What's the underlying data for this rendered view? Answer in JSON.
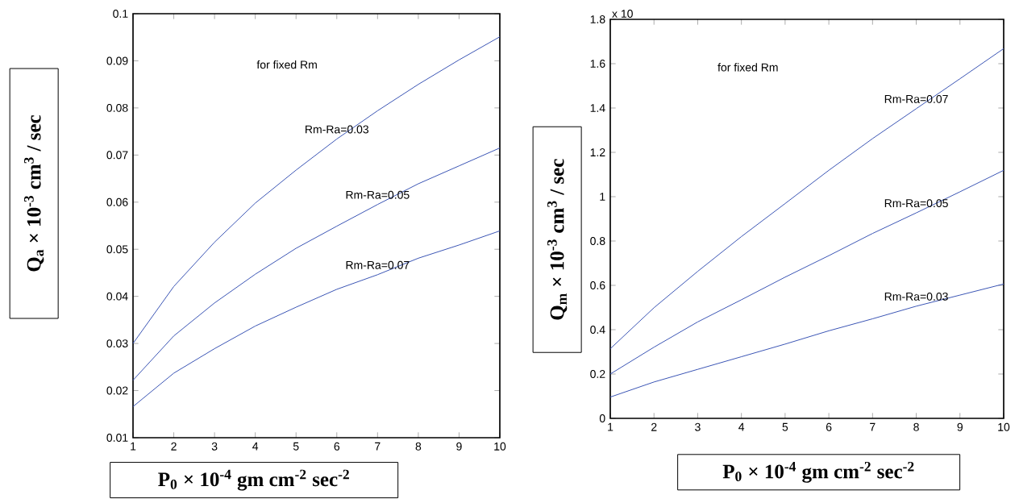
{
  "chart_data": [
    {
      "type": "line",
      "xlabel": "P$_{0}$ × 10$^{-4}$  gm cm$^{-2}$ sec$^{-2}$",
      "ylabel": "Q$_{a}$ × 10$^{-3}$  cm$^{3}$ / sec",
      "x": [
        1,
        2,
        3,
        4,
        5,
        6,
        7,
        8,
        9,
        10
      ],
      "series": [
        {
          "color": "#3b55b5",
          "values": [
            0.03,
            0.0421,
            0.0515,
            0.0598,
            0.0668,
            0.0734,
            0.0794,
            0.085,
            0.0902,
            0.0951
          ]
        },
        {
          "color": "#3b55b5",
          "values": [
            0.0222,
            0.0316,
            0.0386,
            0.0447,
            0.0502,
            0.0549,
            0.0595,
            0.0639,
            0.0677,
            0.0715
          ]
        },
        {
          "color": "#3b55b5",
          "values": [
            0.0166,
            0.0237,
            0.0289,
            0.0337,
            0.0377,
            0.0415,
            0.0446,
            0.0481,
            0.0509,
            0.0539
          ]
        }
      ],
      "xlim": [
        1,
        10
      ],
      "ylim": [
        0.01,
        0.1
      ],
      "xticks": [
        1,
        2,
        3,
        4,
        5,
        6,
        7,
        8,
        9,
        10
      ],
      "yticks": [
        0.01,
        0.02,
        0.03,
        0.04,
        0.05,
        0.06,
        0.07,
        0.08,
        0.09,
        0.1
      ],
      "annotations": [
        "for fixed Rm",
        {
          "text": "Rm-Ra=0.03",
          "x": 6,
          "y": 0.0734
        },
        {
          "text": "Rm-Ra=0.05",
          "x": 7,
          "y": 0.0595
        },
        {
          "text": "Rm-Ra=0.07",
          "x": 7,
          "y": 0.0446
        }
      ]
    },
    {
      "type": "line",
      "xlabel": "P$_{0}$ × 10$^{-4}$  gm cm$^{-2}$ sec$^{-2}$",
      "ylabel": "Q$_{m}$ × 10$^{-3}$  cm$^{3}$ / sec",
      "x": [
        1,
        2,
        3,
        4,
        5,
        6,
        7,
        8,
        9,
        10
      ],
      "series": [
        {
          "color": "#3b55b5",
          "values": [
            0.314,
            0.499,
            0.663,
            0.82,
            0.969,
            1.119,
            1.262,
            1.397,
            1.532,
            1.668
          ]
        },
        {
          "color": "#3b55b5",
          "values": [
            0.2,
            0.321,
            0.435,
            0.535,
            0.637,
            0.734,
            0.834,
            0.927,
            1.022,
            1.119
          ]
        },
        {
          "color": "#3b55b5",
          "values": [
            0.096,
            0.164,
            0.221,
            0.278,
            0.335,
            0.395,
            0.449,
            0.506,
            0.556,
            0.606
          ]
        }
      ],
      "xlim": [
        1,
        10
      ],
      "ylim": [
        0,
        1.8
      ],
      "xticks": [
        1,
        2,
        3,
        4,
        5,
        6,
        7,
        8,
        9,
        10
      ],
      "yticks": [
        0,
        0.2,
        0.4,
        0.6,
        0.8,
        1,
        1.2,
        1.4,
        1.6,
        1.8
      ],
      "annotations": [
        "for fixed Rm",
        "x 10",
        {
          "text": "Rm-Ra=0.07",
          "x": 8,
          "y": 1.397
        },
        {
          "text": "Rm-Ra=0.05",
          "x": 8,
          "y": 0.927
        },
        {
          "text": "Rm-Ra=0.03",
          "x": 8,
          "y": 0.506
        }
      ]
    }
  ]
}
